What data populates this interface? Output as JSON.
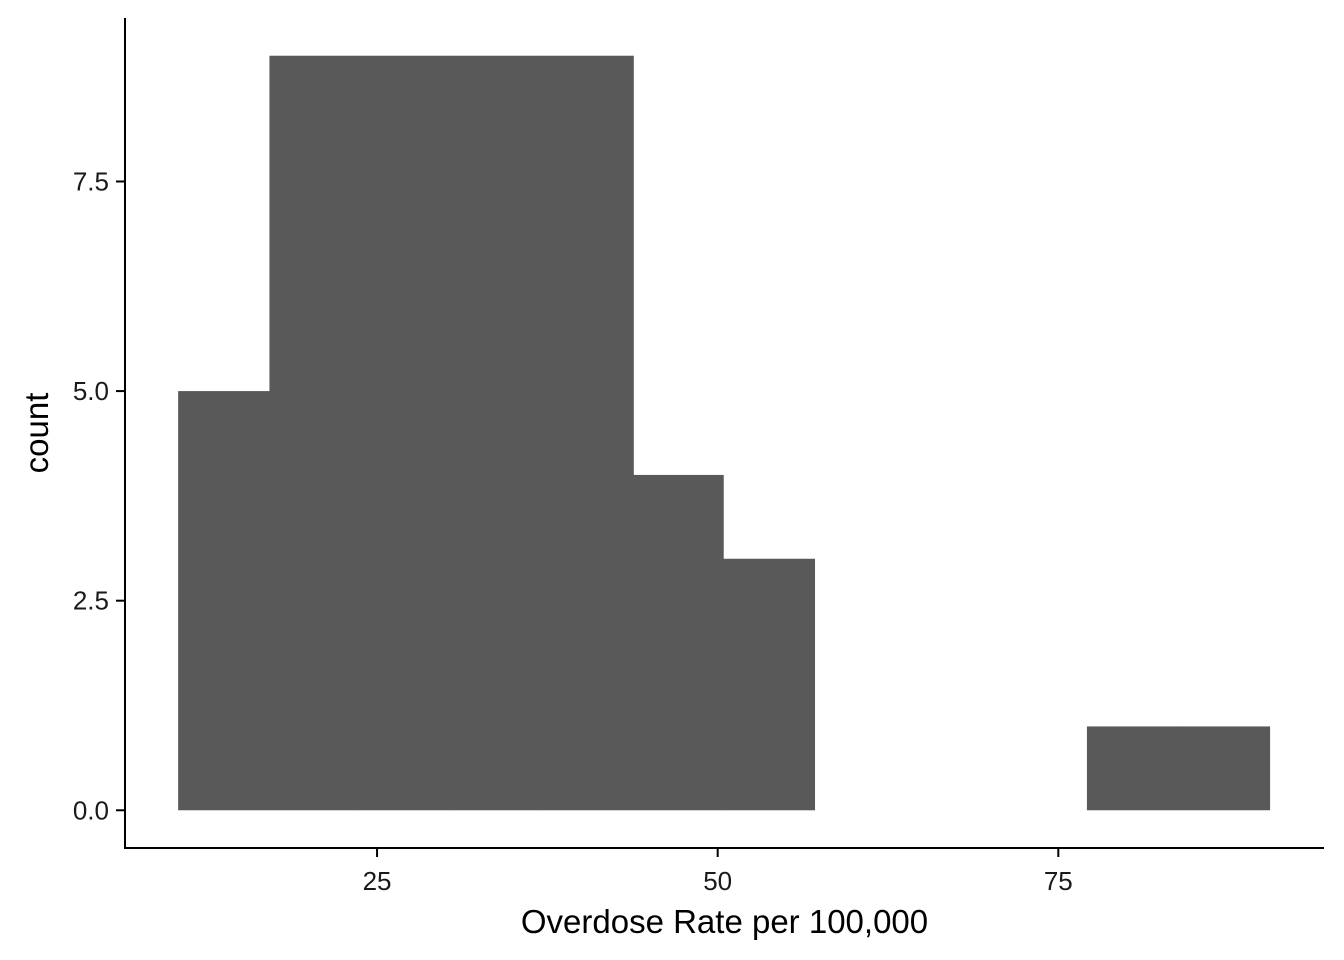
{
  "chart_data": {
    "type": "bar",
    "subtype": "histogram",
    "title": "",
    "xlabel": "Overdose Rate per 100,000",
    "ylabel": "count",
    "bar_color": "#595959",
    "axis_color": "#000000",
    "background": "#ffffff",
    "grid": false,
    "xlim": [
      6.5,
      94.5
    ],
    "ylim": [
      -0.45,
      9.45
    ],
    "x_ticks": [
      {
        "value": 25,
        "label": "25"
      },
      {
        "value": 50,
        "label": "50"
      },
      {
        "value": 75,
        "label": "75"
      }
    ],
    "y_ticks": [
      {
        "value": 0,
        "label": "0.0"
      },
      {
        "value": 2.5,
        "label": "2.5"
      },
      {
        "value": 5,
        "label": "5.0"
      },
      {
        "value": 7.5,
        "label": "7.5"
      }
    ],
    "bins": [
      {
        "x0": 10.4,
        "x1": 17.1,
        "count": 5
      },
      {
        "x0": 17.1,
        "x1": 23.7,
        "count": 9
      },
      {
        "x0": 23.7,
        "x1": 30.4,
        "count": 9
      },
      {
        "x0": 30.4,
        "x1": 37.1,
        "count": 9
      },
      {
        "x0": 37.1,
        "x1": 43.8,
        "count": 9
      },
      {
        "x0": 43.8,
        "x1": 50.4,
        "count": 4
      },
      {
        "x0": 50.4,
        "x1": 57.1,
        "count": 3
      },
      {
        "x0": 57.1,
        "x1": 63.8,
        "count": 0
      },
      {
        "x0": 63.8,
        "x1": 70.5,
        "count": 0
      },
      {
        "x0": 70.5,
        "x1": 77.1,
        "count": 0
      },
      {
        "x0": 77.1,
        "x1": 83.8,
        "count": 1
      },
      {
        "x0": 83.8,
        "x1": 90.5,
        "count": 1
      }
    ]
  }
}
